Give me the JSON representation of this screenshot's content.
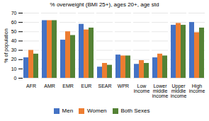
{
  "chart_data": {
    "type": "bar",
    "title": "% overweight (BMI 25+), ages 20+, age std",
    "ylabel": "% of population",
    "categories": [
      "AFR",
      "AMR",
      "EMR",
      "EUR",
      "SEAR",
      "WPR",
      "Low\nincome",
      "Lower\nmiddle\nincome",
      "Upper\nmiddle\nincome",
      "High\nincome"
    ],
    "series": [
      {
        "name": "Men",
        "color": "#4472C4",
        "values": [
          22,
          62,
          41,
          58,
          12,
          25,
          15,
          22,
          57,
          60
        ]
      },
      {
        "name": "Women",
        "color": "#ED7D31",
        "values": [
          30,
          62,
          50,
          52,
          16,
          24,
          19,
          26,
          59,
          49
        ]
      },
      {
        "name": "Both Sexes",
        "color": "#548235",
        "values": [
          26,
          62,
          46,
          54,
          14,
          24,
          16,
          24,
          57,
          54
        ]
      }
    ],
    "ylim": [
      0,
      70
    ],
    "yticks": [
      0,
      10,
      20,
      30,
      40,
      50,
      60,
      70
    ],
    "grid": true,
    "legend": "bottom"
  }
}
